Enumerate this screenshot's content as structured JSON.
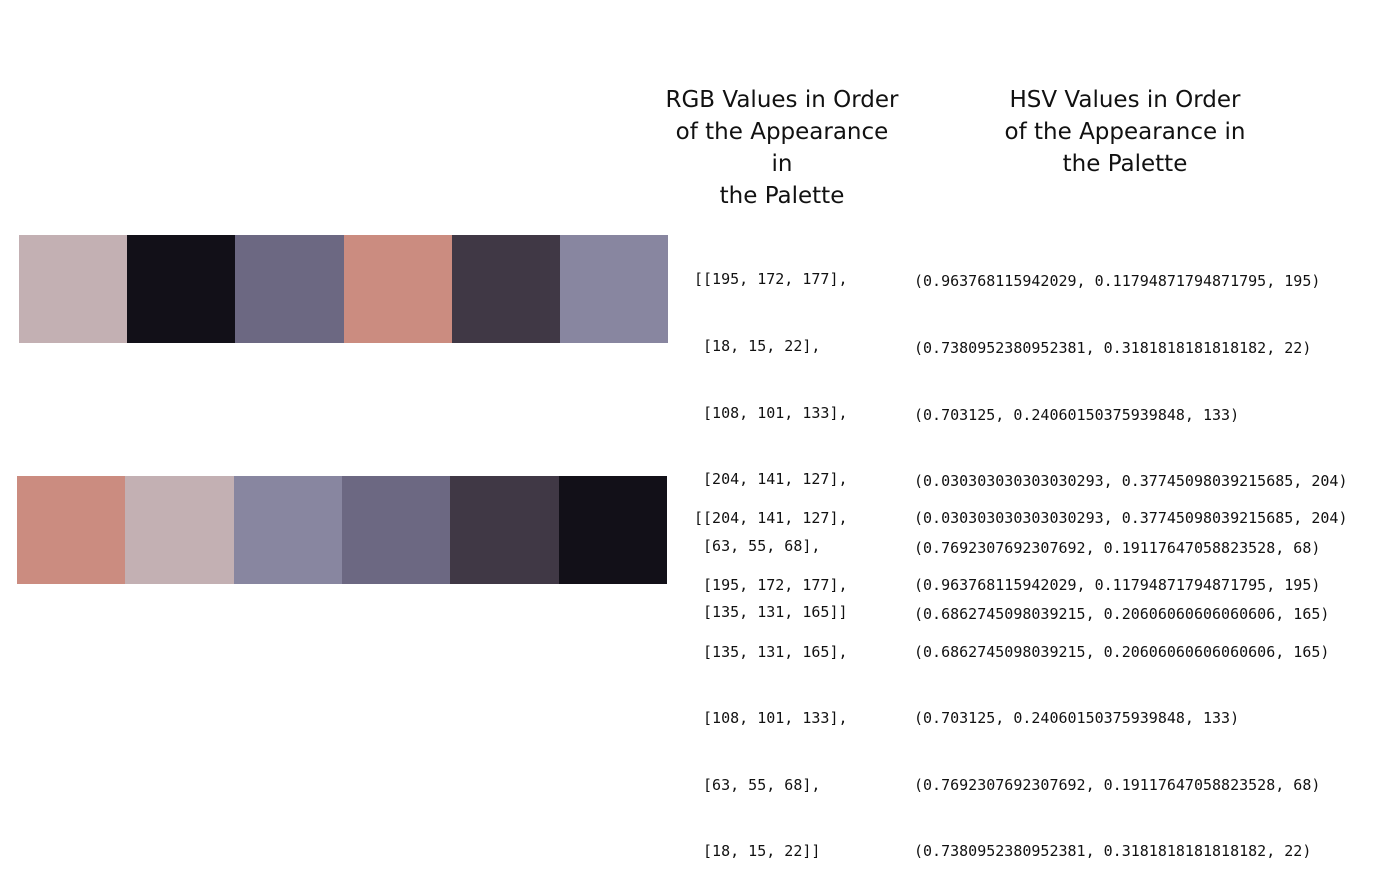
{
  "headers": {
    "rgb": "RGB Values in Order\nof the Appearance in\nthe Palette",
    "hsv": "HSV Values in Order\nof the Appearance in\nthe Palette"
  },
  "palettes": [
    {
      "swatch_colors": [
        "#c3b0b3",
        "#121018",
        "#6c6882",
        "#cb8c80",
        "#403845",
        "#8886a0"
      ],
      "rgb_lines": [
        "[[195, 172, 177],",
        " [18, 15, 22],",
        " [108, 101, 133],",
        " [204, 141, 127],",
        " [63, 55, 68],",
        " [135, 131, 165]]"
      ],
      "hsv_lines": [
        "(0.963768115942029, 0.11794871794871795, 195)",
        "(0.7380952380952381, 0.3181818181818182, 22)",
        "(0.703125, 0.24060150375939848, 133)",
        "(0.030303030303030293, 0.37745098039215685, 204)",
        "(0.7692307692307692, 0.19117647058823528, 68)",
        "(0.6862745098039215, 0.20606060606060606, 165)"
      ]
    },
    {
      "swatch_colors": [
        "#cb8c80",
        "#c3b0b3",
        "#8886a0",
        "#6c6882",
        "#403845",
        "#121018"
      ],
      "rgb_lines": [
        "[[204, 141, 127],",
        " [195, 172, 177],",
        " [135, 131, 165],",
        " [108, 101, 133],",
        " [63, 55, 68],",
        " [18, 15, 22]]"
      ],
      "hsv_lines": [
        "(0.030303030303030293, 0.37745098039215685, 204)",
        "(0.963768115942029, 0.11794871794871795, 195)",
        "(0.6862745098039215, 0.20606060606060606, 165)",
        "(0.703125, 0.24060150375939848, 133)",
        "(0.7692307692307692, 0.19117647058823528, 68)",
        "(0.7380952380952381, 0.3181818181818182, 22)"
      ]
    }
  ]
}
